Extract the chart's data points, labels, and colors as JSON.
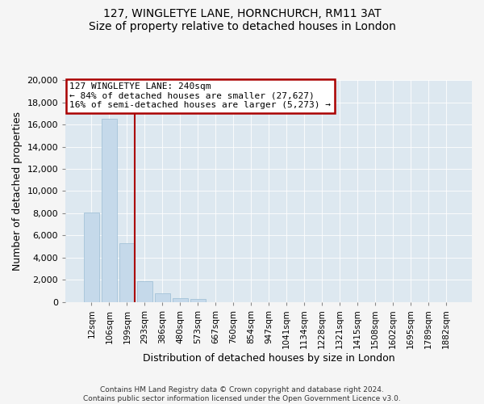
{
  "title": "127, WINGLETYE LANE, HORNCHURCH, RM11 3AT",
  "subtitle": "Size of property relative to detached houses in London",
  "xlabel": "Distribution of detached houses by size in London",
  "ylabel": "Number of detached properties",
  "bar_labels": [
    "12sqm",
    "106sqm",
    "199sqm",
    "293sqm",
    "386sqm",
    "480sqm",
    "573sqm",
    "667sqm",
    "760sqm",
    "854sqm",
    "947sqm",
    "1041sqm",
    "1134sqm",
    "1228sqm",
    "1321sqm",
    "1415sqm",
    "1508sqm",
    "1602sqm",
    "1695sqm",
    "1789sqm",
    "1882sqm"
  ],
  "bar_values": [
    8100,
    16500,
    5300,
    1850,
    780,
    330,
    250,
    0,
    0,
    0,
    0,
    0,
    0,
    0,
    0,
    0,
    0,
    0,
    0,
    0,
    0
  ],
  "bar_color": "#c5d9ea",
  "bar_edge_color": "#9bbdd4",
  "property_line_label": "127 WINGLETYE LANE: 240sqm",
  "annotation_line1": "← 84% of detached houses are smaller (27,627)",
  "annotation_line2": "16% of semi-detached houses are larger (5,273) →",
  "annotation_box_color": "#ffffff",
  "annotation_box_edge": "#aa0000",
  "vline_color": "#aa0000",
  "vline_x": 2.42,
  "ylim": [
    0,
    20000
  ],
  "yticks": [
    0,
    2000,
    4000,
    6000,
    8000,
    10000,
    12000,
    14000,
    16000,
    18000,
    20000
  ],
  "footer1": "Contains HM Land Registry data © Crown copyright and database right 2024.",
  "footer2": "Contains public sector information licensed under the Open Government Licence v3.0.",
  "bg_color": "#f5f5f5",
  "plot_bg_color": "#dde8f0"
}
